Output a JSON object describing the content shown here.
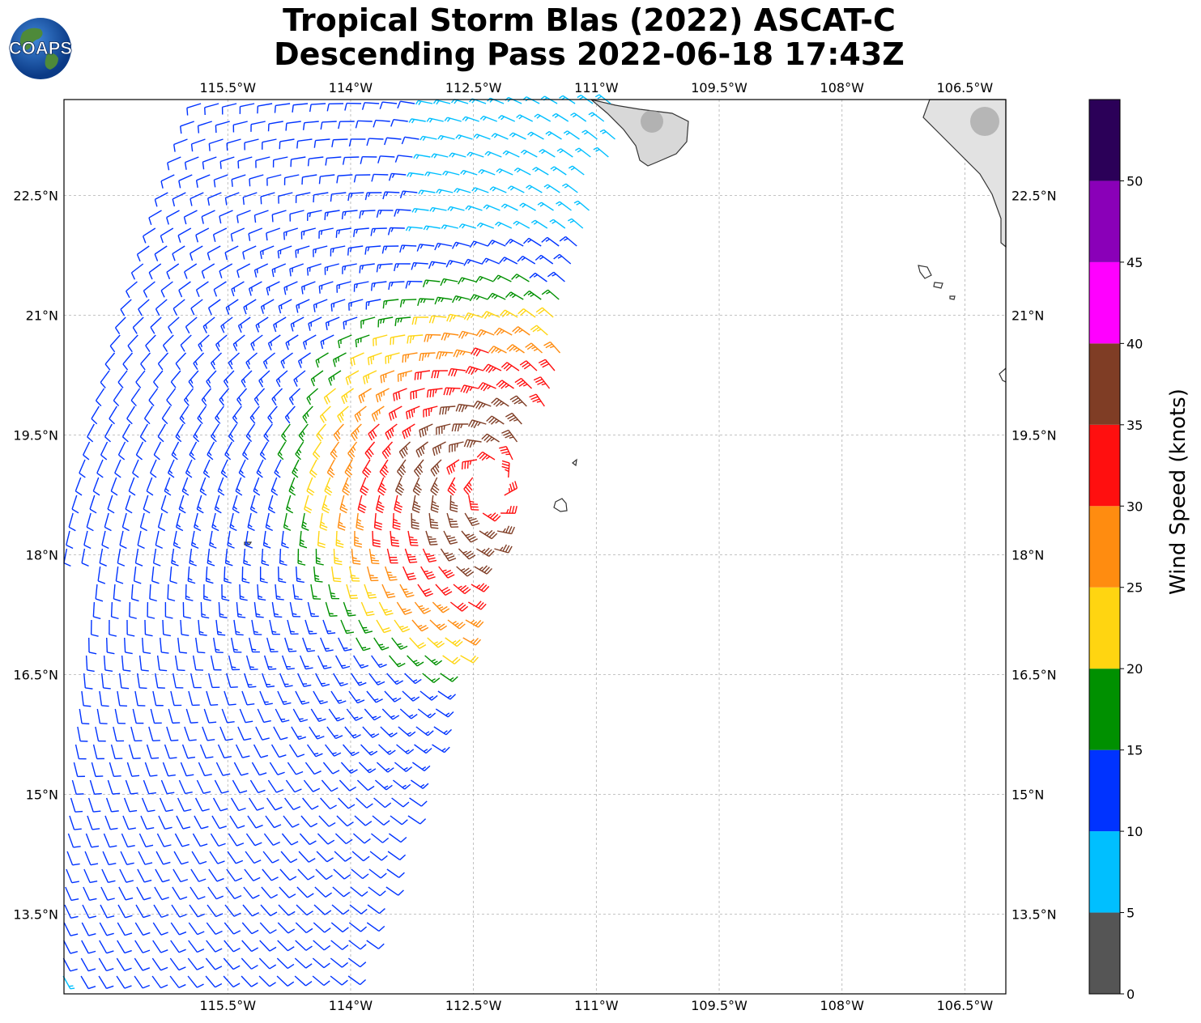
{
  "title": {
    "line1": "Tropical Storm Blas (2022) ASCAT-C",
    "line2": "Descending Pass 2022-06-18 17:43Z"
  },
  "logo": {
    "text": "COAPS",
    "icon": "globe-logo-icon"
  },
  "map": {
    "lon_range": [
      -117.5,
      -106.0
    ],
    "lat_range": [
      12.5,
      23.7
    ],
    "lon_ticks": [
      "115.5°W",
      "114°W",
      "112.5°W",
      "111°W",
      "109.5°W",
      "108°W",
      "106.5°W"
    ],
    "lat_ticks": [
      "22.5°N",
      "21°N",
      "19.5°N",
      "18°N",
      "16.5°N",
      "15°N",
      "13.5°N"
    ],
    "gridlines": true,
    "storm_center": {
      "lat": 18.9,
      "lon": -112.3
    }
  },
  "colorbar": {
    "label": "Wind Speed (knots)",
    "ticks": [
      "0",
      "5",
      "10",
      "15",
      "20",
      "25",
      "30",
      "35",
      "40",
      "45",
      "50"
    ],
    "bins": [
      {
        "min": 0,
        "max": 5,
        "color": "#555555"
      },
      {
        "min": 5,
        "max": 10,
        "color": "#00bfff"
      },
      {
        "min": 10,
        "max": 15,
        "color": "#0033ff"
      },
      {
        "min": 15,
        "max": 20,
        "color": "#009000"
      },
      {
        "min": 20,
        "max": 25,
        "color": "#ffd511"
      },
      {
        "min": 25,
        "max": 30,
        "color": "#ff8c10"
      },
      {
        "min": 30,
        "max": 35,
        "color": "#ff0f0f"
      },
      {
        "min": 35,
        "max": 40,
        "color": "#7f3d25"
      },
      {
        "min": 40,
        "max": 45,
        "color": "#ff00ff"
      },
      {
        "min": 45,
        "max": 50,
        "color": "#8a00b8"
      },
      {
        "min": 50,
        "max": 55,
        "color": "#2b0058"
      }
    ]
  }
}
